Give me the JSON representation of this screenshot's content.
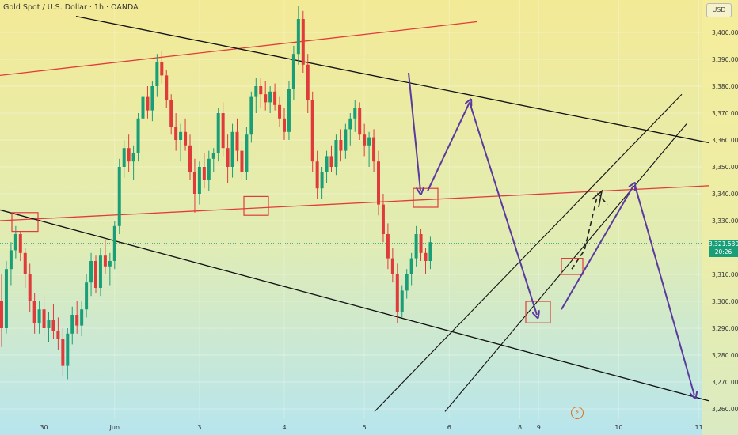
{
  "header": {
    "title": "Gold Spot / U.S. Dollar · 1h · OANDA",
    "currency_button": "USD",
    "current_price": "3,321.530",
    "countdown": "20:26"
  },
  "chart_data": {
    "type": "candlestick",
    "title": "Gold Spot / U.S. Dollar · 1h · OANDA",
    "instrument": "XAUUSD",
    "timeframe": "1h",
    "ylim": [
      3257,
      3417
    ],
    "y_ticks": [
      3260,
      3270,
      3280,
      3290,
      3300,
      3310,
      3320,
      3330,
      3340,
      3350,
      3360,
      3370,
      3380,
      3390,
      3400
    ],
    "y_tick_labels": [
      "3,260.000",
      "3,270.000",
      "3,280.000",
      "3,290.000",
      "3,300.000",
      "3,310.000",
      "3,320.000",
      "3,330.000",
      "3,340.000",
      "3,350.000",
      "3,360.000",
      "3,370.000",
      "3,380.000",
      "3,390.000",
      "3,400.000"
    ],
    "x_ticks": [
      {
        "label": "30",
        "bar": 9
      },
      {
        "label": "Jun",
        "bar": 24
      },
      {
        "label": "3",
        "bar": 42
      },
      {
        "label": "4",
        "bar": 60
      },
      {
        "label": "5",
        "bar": 77
      },
      {
        "label": "6",
        "bar": 95
      },
      {
        "label": "8",
        "bar": 110
      },
      {
        "label": "9",
        "bar": 114
      },
      {
        "label": "10",
        "bar": 131
      },
      {
        "label": "11",
        "bar": 148
      }
    ],
    "current_price": 3321.53,
    "candles_ohlc": [
      [
        3300,
        3310,
        3283,
        3290
      ],
      [
        3290,
        3315,
        3288,
        3312
      ],
      [
        3312,
        3322,
        3306,
        3319
      ],
      [
        3319,
        3328,
        3316,
        3325
      ],
      [
        3325,
        3326,
        3315,
        3318
      ],
      [
        3318,
        3320,
        3305,
        3310
      ],
      [
        3310,
        3314,
        3296,
        3300
      ],
      [
        3300,
        3303,
        3288,
        3292
      ],
      [
        3292,
        3300,
        3288,
        3297
      ],
      [
        3297,
        3302,
        3287,
        3290
      ],
      [
        3290,
        3296,
        3285,
        3293
      ],
      [
        3293,
        3299,
        3286,
        3289
      ],
      [
        3289,
        3294,
        3282,
        3286
      ],
      [
        3286,
        3290,
        3272,
        3276
      ],
      [
        3276,
        3290,
        3271,
        3288
      ],
      [
        3288,
        3298,
        3284,
        3295
      ],
      [
        3295,
        3300,
        3288,
        3291
      ],
      [
        3291,
        3300,
        3287,
        3297
      ],
      [
        3297,
        3310,
        3294,
        3307
      ],
      [
        3307,
        3318,
        3302,
        3315
      ],
      [
        3315,
        3317,
        3303,
        3305
      ],
      [
        3305,
        3320,
        3302,
        3317
      ],
      [
        3317,
        3323,
        3310,
        3313
      ],
      [
        3313,
        3318,
        3306,
        3315
      ],
      [
        3315,
        3330,
        3312,
        3328
      ],
      [
        3328,
        3353,
        3325,
        3350
      ],
      [
        3350,
        3360,
        3346,
        3357
      ],
      [
        3357,
        3362,
        3348,
        3352
      ],
      [
        3352,
        3358,
        3345,
        3355
      ],
      [
        3355,
        3370,
        3352,
        3368
      ],
      [
        3368,
        3378,
        3363,
        3376
      ],
      [
        3376,
        3380,
        3368,
        3371
      ],
      [
        3371,
        3382,
        3367,
        3380
      ],
      [
        3380,
        3392,
        3376,
        3389
      ],
      [
        3389,
        3393,
        3381,
        3384
      ],
      [
        3384,
        3386,
        3372,
        3375
      ],
      [
        3375,
        3377,
        3362,
        3365
      ],
      [
        3365,
        3370,
        3356,
        3360
      ],
      [
        3360,
        3366,
        3352,
        3363
      ],
      [
        3363,
        3368,
        3356,
        3358
      ],
      [
        3358,
        3362,
        3345,
        3348
      ],
      [
        3348,
        3353,
        3333,
        3340
      ],
      [
        3340,
        3352,
        3336,
        3350
      ],
      [
        3350,
        3355,
        3342,
        3345
      ],
      [
        3345,
        3356,
        3341,
        3353
      ],
      [
        3353,
        3357,
        3348,
        3355
      ],
      [
        3355,
        3372,
        3352,
        3370
      ],
      [
        3370,
        3374,
        3354,
        3357
      ],
      [
        3357,
        3362,
        3344,
        3350
      ],
      [
        3350,
        3366,
        3346,
        3363
      ],
      [
        3363,
        3368,
        3352,
        3356
      ],
      [
        3356,
        3360,
        3345,
        3348
      ],
      [
        3348,
        3365,
        3345,
        3362
      ],
      [
        3362,
        3378,
        3359,
        3376
      ],
      [
        3376,
        3383,
        3370,
        3380
      ],
      [
        3380,
        3383,
        3372,
        3377
      ],
      [
        3377,
        3382,
        3371,
        3374
      ],
      [
        3374,
        3380,
        3370,
        3378
      ],
      [
        3378,
        3381,
        3371,
        3373
      ],
      [
        3373,
        3376,
        3365,
        3368
      ],
      [
        3368,
        3372,
        3360,
        3363
      ],
      [
        3363,
        3382,
        3360,
        3379
      ],
      [
        3379,
        3395,
        3375,
        3392
      ],
      [
        3392,
        3410,
        3388,
        3405
      ],
      [
        3405,
        3408,
        3385,
        3388
      ],
      [
        3388,
        3392,
        3370,
        3375
      ],
      [
        3375,
        3378,
        3348,
        3352
      ],
      [
        3352,
        3356,
        3338,
        3342
      ],
      [
        3342,
        3350,
        3338,
        3348
      ],
      [
        3348,
        3356,
        3344,
        3354
      ],
      [
        3354,
        3358,
        3348,
        3350
      ],
      [
        3350,
        3362,
        3347,
        3360
      ],
      [
        3360,
        3364,
        3352,
        3356
      ],
      [
        3356,
        3366,
        3353,
        3364
      ],
      [
        3364,
        3370,
        3358,
        3368
      ],
      [
        3368,
        3375,
        3363,
        3372
      ],
      [
        3372,
        3374,
        3360,
        3362
      ],
      [
        3362,
        3366,
        3354,
        3358
      ],
      [
        3358,
        3363,
        3350,
        3361
      ],
      [
        3361,
        3364,
        3348,
        3352
      ],
      [
        3352,
        3356,
        3332,
        3336
      ],
      [
        3336,
        3340,
        3322,
        3325
      ],
      [
        3325,
        3329,
        3312,
        3316
      ],
      [
        3316,
        3320,
        3307,
        3310
      ],
      [
        3310,
        3314,
        3292,
        3296
      ],
      [
        3296,
        3306,
        3294,
        3304
      ],
      [
        3304,
        3312,
        3301,
        3310
      ],
      [
        3310,
        3318,
        3306,
        3316
      ],
      [
        3316,
        3328,
        3313,
        3325
      ],
      [
        3325,
        3327,
        3315,
        3318
      ],
      [
        3318,
        3320,
        3310,
        3315
      ],
      [
        3315,
        3324,
        3312,
        3322
      ]
    ],
    "annotations": {
      "boxes": [
        "3,330 (30 May)",
        "3,336 (3 Jun)",
        "3,341 (5 Jun)",
        "3,295 (6 Jun)",
        "3,313 (9 Jun)"
      ],
      "arrows": [
        "down to 3,341",
        "up to 3,374",
        "down to 3,295",
        "up to 3,343 (projected)",
        "down to 3,265 (projected)"
      ]
    }
  }
}
